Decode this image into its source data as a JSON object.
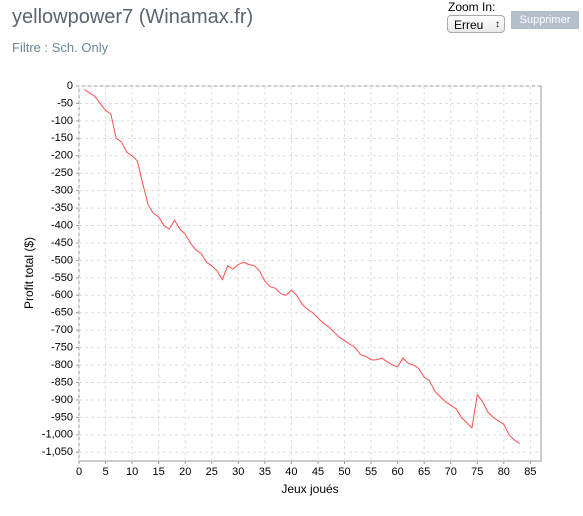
{
  "header": {
    "title": "yellowpower7 (Winamax.fr)",
    "filter": "Filtre : Sch. Only",
    "zoom_label": "Zoom In:",
    "zoom_select": "Erreu",
    "delete_button": "Supprimer"
  },
  "chart_data": {
    "type": "line",
    "x_label": "Jeux joués",
    "y_label": "Profit total ($)",
    "x": [
      1,
      2,
      3,
      4,
      5,
      6,
      7,
      8,
      9,
      10,
      11,
      12,
      13,
      14,
      15,
      16,
      17,
      18,
      19,
      20,
      21,
      22,
      23,
      24,
      25,
      26,
      27,
      28,
      29,
      30,
      31,
      32,
      33,
      34,
      35,
      36,
      37,
      38,
      39,
      40,
      41,
      42,
      43,
      44,
      45,
      46,
      47,
      48,
      49,
      50,
      51,
      52,
      53,
      54,
      55,
      56,
      57,
      58,
      59,
      60,
      61,
      62,
      63,
      64,
      65,
      66,
      67,
      68,
      69,
      70,
      71,
      72,
      73,
      74,
      75,
      76,
      77,
      78,
      79,
      80,
      81,
      82,
      83
    ],
    "series": [
      {
        "color": "#ff4d4d",
        "values": [
          -10,
          -20,
          -30,
          -50,
          -70,
          -80,
          -150,
          -160,
          -190,
          -200,
          -215,
          -280,
          -340,
          -365,
          -375,
          -400,
          -410,
          -385,
          -410,
          -425,
          -450,
          -470,
          -480,
          -505,
          -515,
          -530,
          -555,
          -515,
          -525,
          -512,
          -505,
          -512,
          -515,
          -530,
          -560,
          -575,
          -580,
          -595,
          -600,
          -585,
          -600,
          -625,
          -640,
          -650,
          -665,
          -680,
          -690,
          -705,
          -720,
          -730,
          -740,
          -750,
          -770,
          -775,
          -785,
          -785,
          -780,
          -790,
          -800,
          -805,
          -780,
          -795,
          -800,
          -810,
          -835,
          -845,
          -875,
          -890,
          -905,
          -915,
          -925,
          -950,
          -965,
          -980,
          -885,
          -905,
          -935,
          -950,
          -960,
          -970,
          -1000,
          -1015,
          -1025
        ]
      }
    ],
    "xlim": [
      0,
      87
    ],
    "xticks": [
      0,
      5,
      10,
      15,
      20,
      25,
      30,
      35,
      40,
      45,
      50,
      55,
      60,
      65,
      70,
      75,
      80,
      85
    ],
    "ylim": [
      -1075,
      0
    ],
    "yticks": [
      0,
      -50,
      -100,
      -150,
      -200,
      -250,
      -300,
      -350,
      -400,
      -450,
      -500,
      -550,
      -600,
      -650,
      -700,
      -750,
      -800,
      -850,
      -900,
      -950,
      {
        "value": -1000,
        "label": "-1,000"
      },
      {
        "value": -1050,
        "label": "-1,050"
      }
    ],
    "grid": true
  }
}
